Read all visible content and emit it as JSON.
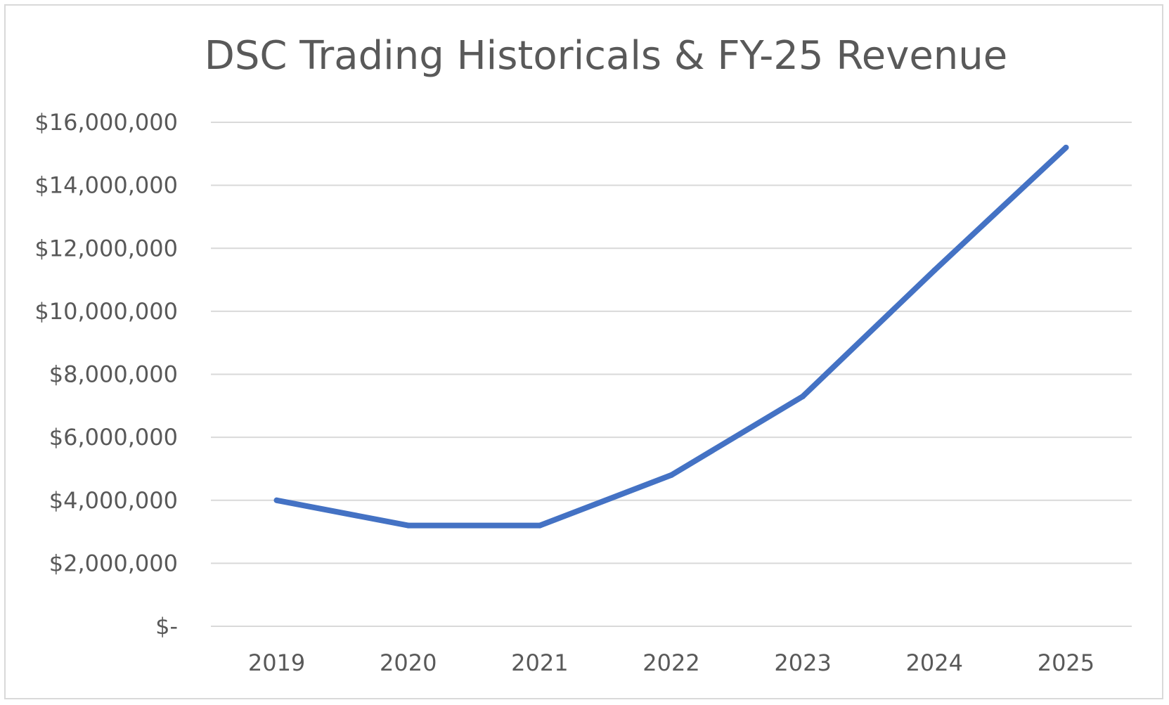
{
  "chart_data": {
    "type": "line",
    "title": "DSC Trading Historicals & FY-25 Revenue",
    "xlabel": "",
    "ylabel": "",
    "categories": [
      "2019",
      "2020",
      "2021",
      "2022",
      "2023",
      "2024",
      "2025"
    ],
    "series": [
      {
        "values": [
          4000000,
          3200000,
          3200000,
          4800000,
          7300000,
          11300000,
          15200000
        ],
        "color": "#4472C4"
      }
    ],
    "ylim": [
      0,
      16000000
    ],
    "yticks": [
      0,
      2000000,
      4000000,
      6000000,
      8000000,
      10000000,
      12000000,
      14000000,
      16000000
    ],
    "ytick_labels": [
      "$-",
      "$2,000,000",
      "$4,000,000",
      "$6,000,000",
      "$8,000,000",
      "$10,000,000",
      "$12,000,000",
      "$14,000,000",
      "$16,000,000"
    ],
    "grid": true,
    "legend": "none",
    "border_color": "#d9d9d9",
    "grid_color": "#d9d9d9",
    "text_color": "#595959"
  }
}
